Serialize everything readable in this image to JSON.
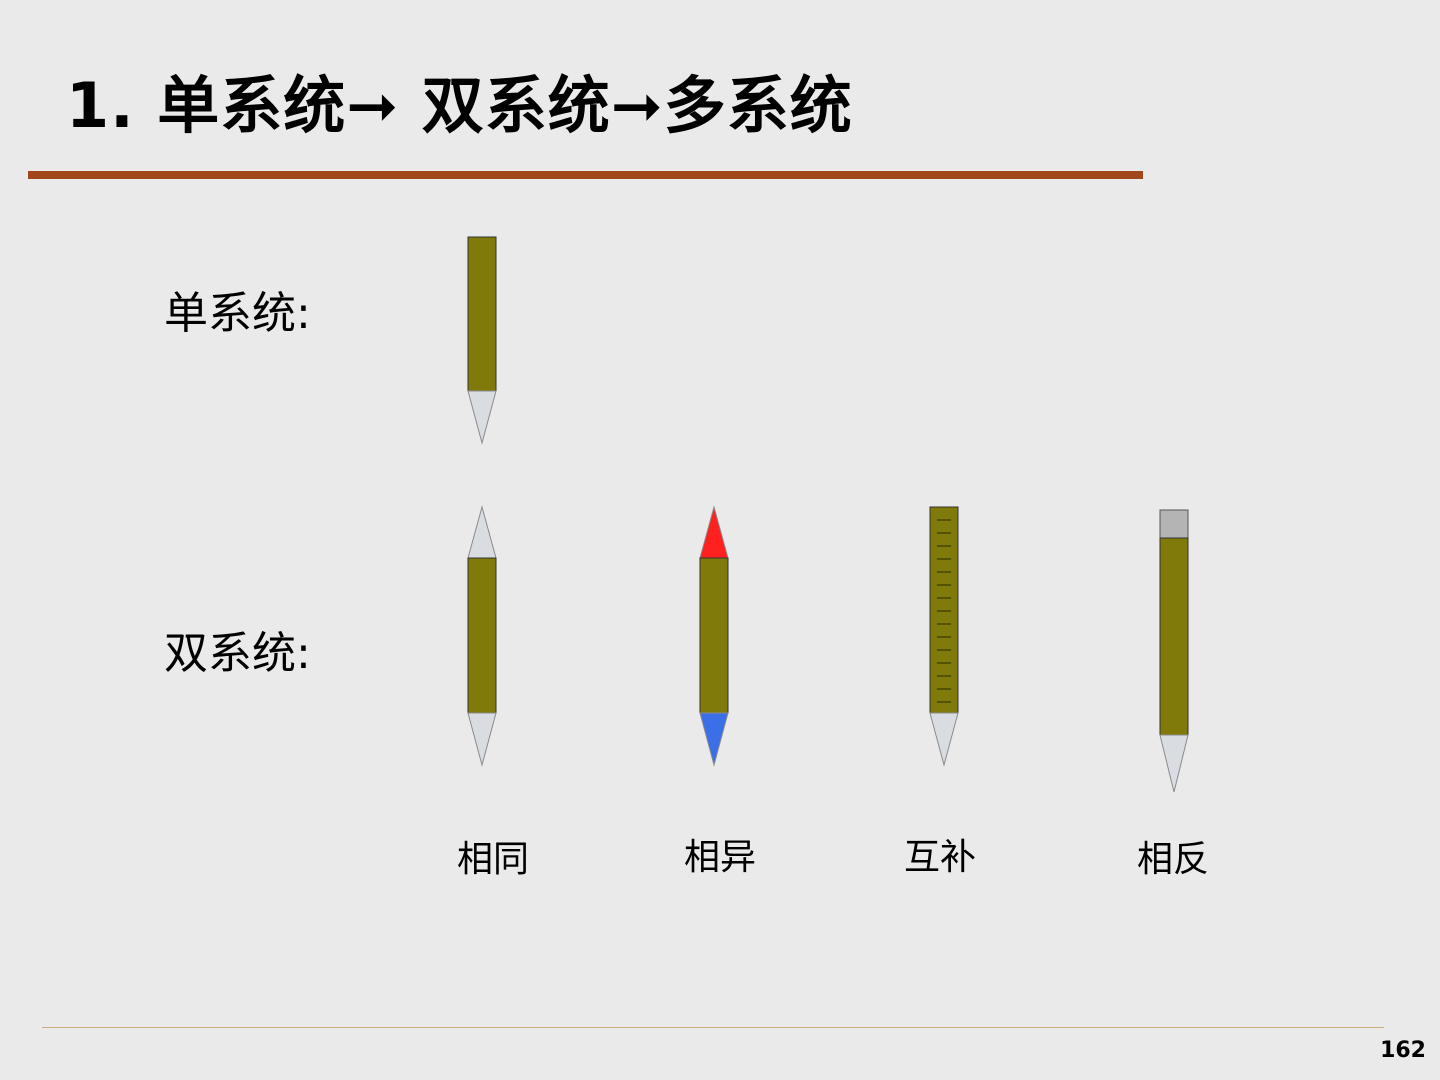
{
  "title": "1. 单系统➞  双系统➞多系统",
  "rows": {
    "single_label": "单系统:",
    "double_label": "双系统:"
  },
  "captions": {
    "same": "相同",
    "different": "相异",
    "complementary": "互补",
    "opposite": "相反"
  },
  "page_number": "162",
  "colors": {
    "background": "#EAEAEA",
    "title_rule": "#A0481C",
    "pencil_body": "#7F7A0A",
    "pencil_tip": "#D9DDE2",
    "tip_red": "#FF2020",
    "tip_blue": "#3A6FE8",
    "eraser": "#B4B4B4",
    "footer_rule": "#C8B078"
  }
}
